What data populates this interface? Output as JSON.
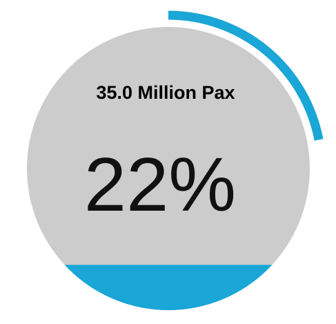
{
  "chart_data": {
    "type": "gauge",
    "subtitle": "35.0 Million Pax",
    "value_label": "22%",
    "value": 0.22,
    "fill_level": 0.16,
    "colors": {
      "accent": "#1aa6d6",
      "disc": "#cccccc",
      "background": "#ffffff",
      "text": "#111111"
    }
  }
}
